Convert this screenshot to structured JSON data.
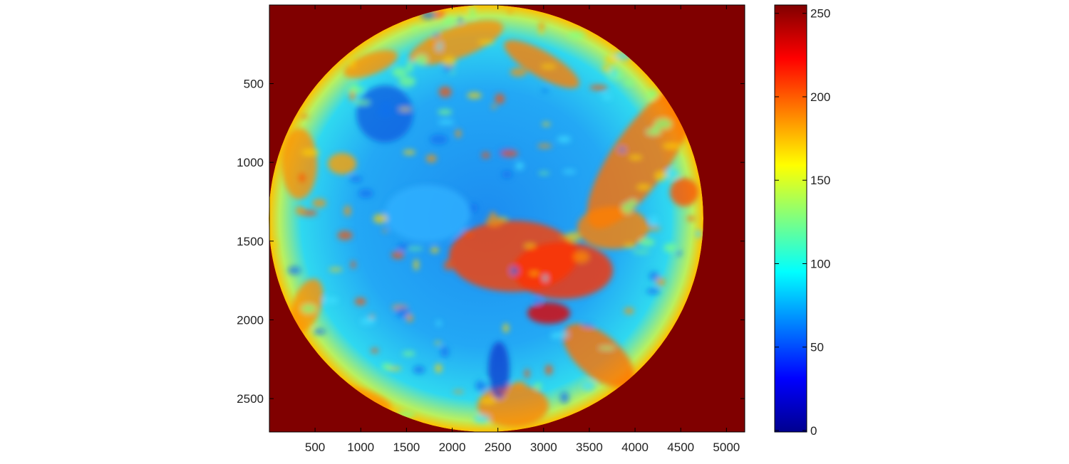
{
  "chart_data": {
    "type": "heatmap",
    "title": "",
    "xlabel": "",
    "ylabel": "",
    "xlim": [
      0.5,
      5200
    ],
    "ylim": [
      0.5,
      2712
    ],
    "y_direction": "reversed",
    "xticks": [
      500,
      1000,
      1500,
      2000,
      2500,
      3000,
      3500,
      4000,
      4500,
      5000
    ],
    "yticks": [
      500,
      1000,
      1500,
      2000,
      2500
    ],
    "colormap": "jet",
    "clim": [
      0,
      255
    ],
    "colorbar": {
      "location": "right",
      "ticks": [
        0,
        50,
        100,
        150,
        200,
        250
      ]
    },
    "background_value": 255,
    "description_content": "full-disk satellite image, values mostly 60-120 over the disk, high values (180-240) in cloud bands",
    "grid": false
  },
  "colors": {
    "background": "#800000",
    "axes": "#000000"
  }
}
